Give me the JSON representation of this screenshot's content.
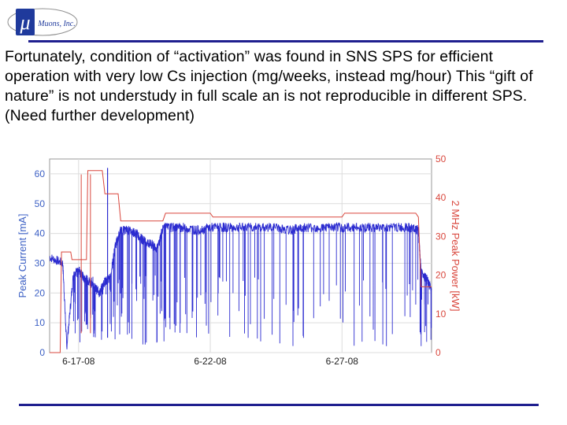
{
  "logo": {
    "symbol": "μ",
    "name": "Muons, Inc."
  },
  "body_text": "Fortunately, condition of “activation” was found in SNS SPS for efficient  operation with very low Cs injection (mg/weeks, instead mg/hour) This “gift of nature” is not understudy in full scale an is not reproducible in different SPS. (Need further development)",
  "colors": {
    "rule": "#1f1f8f",
    "current": "#2b2bd0",
    "power": "#d9473d",
    "left_axis_text": "#3b5fc4",
    "right_axis_text": "#d9473d"
  },
  "chart_data": {
    "type": "line",
    "title": "",
    "xlabel": "",
    "x_ticks": [
      "6-17-08",
      "6-22-08",
      "6-27-08"
    ],
    "x_tick_days": [
      0,
      5,
      10
    ],
    "xlim_days": [
      -1.1,
      13.4
    ],
    "ylabel_left": "Peak Current [mA]",
    "ylim_left": [
      0,
      65
    ],
    "yticks_left": [
      0,
      10,
      20,
      30,
      40,
      50,
      60
    ],
    "ylabel_right": "2 MHz Peak Power [kW]",
    "ylim_right": [
      0,
      50
    ],
    "yticks_right": [
      0,
      10,
      20,
      30,
      40,
      50
    ],
    "grid": true,
    "series": [
      {
        "axis": "left",
        "color": "#2b2bd0",
        "x": [
          -1.1,
          -0.6,
          -0.45,
          -0.2,
          0.0,
          0.2,
          0.4,
          0.6,
          0.8,
          1.0,
          1.2,
          1.4,
          1.6,
          1.9,
          2.2,
          2.4,
          2.6,
          2.8,
          3.0,
          3.2,
          3.6,
          4.0,
          4.5,
          5.0,
          5.5,
          6.0,
          6.5,
          7.0,
          7.5,
          8.0,
          8.5,
          9.0,
          9.5,
          10.0,
          10.5,
          11.0,
          11.5,
          12.0,
          12.5,
          12.9,
          13.0,
          13.2,
          13.4
        ],
        "y": [
          32,
          30,
          2,
          26,
          28,
          25,
          24,
          22,
          20,
          24,
          25,
          36,
          41,
          41,
          40,
          38,
          37,
          36,
          35,
          42,
          42,
          42,
          41,
          42,
          42,
          42,
          42,
          42,
          42,
          41,
          42,
          42,
          42,
          42,
          42,
          42,
          42,
          42,
          42,
          41,
          27,
          25,
          21
        ]
      },
      {
        "axis": "right",
        "color": "#d9473d",
        "x": [
          -1.1,
          -0.7,
          -0.65,
          -0.3,
          -0.25,
          0.3,
          0.35,
          0.9,
          1.0,
          1.5,
          1.6,
          3.2,
          3.3,
          5.0,
          5.1,
          10.0,
          10.1,
          12.8,
          12.9,
          13.0,
          13.4
        ],
        "y": [
          0,
          0,
          26,
          26,
          24,
          24,
          47,
          47,
          41,
          41,
          34,
          34,
          36,
          36,
          35,
          35,
          36,
          36,
          35,
          17,
          17
        ]
      }
    ]
  }
}
